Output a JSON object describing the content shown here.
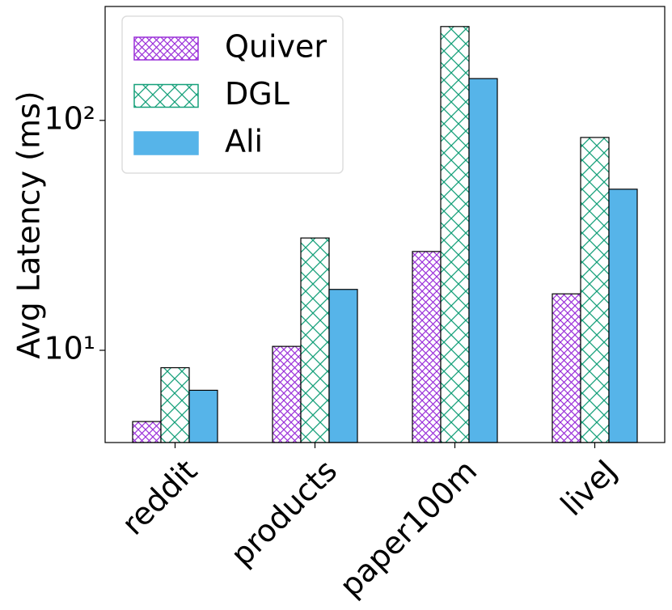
{
  "chart_data": {
    "type": "bar",
    "yscale": "log",
    "ylabel": "Avg Latency (ms)",
    "categories": [
      "reddit",
      "products",
      "paper100m",
      "liveJ"
    ],
    "series": [
      {
        "name": "Quiver",
        "color": "#9b30d9",
        "hatch": "dense",
        "values": [
          4.9,
          10.4,
          26.9,
          17.6
        ]
      },
      {
        "name": "DGL",
        "color": "#16a07a",
        "hatch": "sparse",
        "values": [
          8.4,
          30.8,
          256,
          84.3
        ]
      },
      {
        "name": "Ali",
        "color": "#56b4e9",
        "hatch": "none",
        "values": [
          6.7,
          18.4,
          152,
          50.2
        ]
      }
    ],
    "ylim": [
      3.97,
      313
    ],
    "yticks": [
      {
        "value": 10,
        "label": "10¹"
      },
      {
        "value": 100,
        "label": "10²"
      }
    ],
    "legend": "upper left"
  }
}
